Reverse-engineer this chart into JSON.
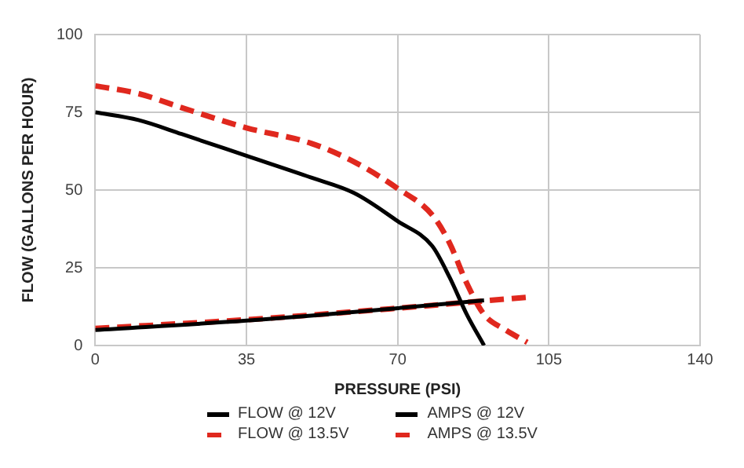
{
  "chart_data": {
    "type": "line",
    "xlabel": "PRESSURE (PSI)",
    "ylabel": "FLOW (GALLONS PER HOUR)",
    "xlim": [
      0,
      140
    ],
    "xticks": [
      0,
      35,
      70,
      105,
      140
    ],
    "ylim": [
      0,
      100
    ],
    "yticks": [
      0,
      25,
      50,
      75,
      100
    ],
    "grid": true,
    "legend": "bottom",
    "marker": "none",
    "series": [
      {
        "name": "FLOW @ 12V",
        "color": "#000000",
        "line_style": "solid",
        "x": [
          0,
          10,
          20,
          35,
          50,
          60,
          70,
          78,
          82,
          86,
          90
        ],
        "values": [
          75,
          72.5,
          68,
          61,
          54,
          49,
          40,
          32,
          22,
          10,
          0
        ]
      },
      {
        "name": "AMPS @ 12V",
        "color": "#000000",
        "line_style": "solid",
        "x": [
          0,
          35,
          70,
          90
        ],
        "values": [
          5,
          8,
          12,
          14.5
        ]
      },
      {
        "name": "FLOW @ 13.5V",
        "color": "#e0281e",
        "line_style": "dashed",
        "x": [
          0,
          10,
          20,
          35,
          50,
          60,
          70,
          78,
          82,
          86,
          90,
          95,
          100
        ],
        "values": [
          83.5,
          81,
          76.5,
          70,
          65,
          59,
          50.5,
          42,
          33,
          20,
          10,
          5,
          1
        ]
      },
      {
        "name": "AMPS @ 13.5V",
        "color": "#e0281e",
        "line_style": "dashed",
        "x": [
          0,
          35,
          70,
          87,
          100
        ],
        "values": [
          5.5,
          8.3,
          12,
          14,
          15.5
        ]
      }
    ]
  }
}
